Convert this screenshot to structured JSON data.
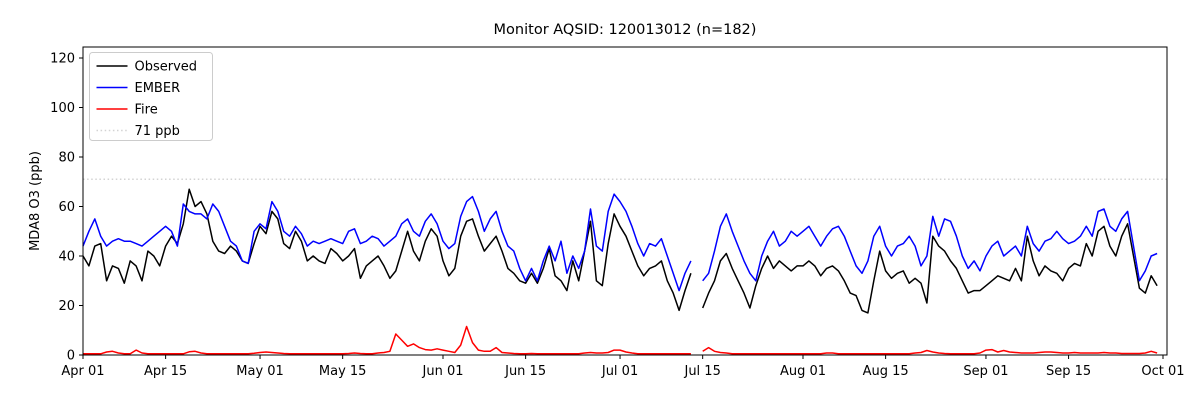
{
  "title": "Monitor AQSID: 120013012 (n=182)",
  "colors": {
    "observed": "#000000",
    "ember": "#0000ff",
    "fire": "#ff0000",
    "threshold": "#d3d3d3",
    "axis": "#000000",
    "legend_border": "#cccccc",
    "background": "#ffffff"
  },
  "chart_data": {
    "type": "line",
    "title": "Monitor AQSID: 120013012 (n=182)",
    "xlabel": "",
    "ylabel": "MDA8 O3 (ppb)",
    "ylim": [
      0,
      124
    ],
    "y_ticks": [
      0,
      20,
      40,
      60,
      80,
      100,
      120
    ],
    "x_tick_labels": [
      "Apr 01",
      "Apr 15",
      "May 01",
      "May 15",
      "Jun 01",
      "Jun 15",
      "Jul 01",
      "Jul 15",
      "Aug 01",
      "Aug 15",
      "Sep 01",
      "Sep 15",
      "Oct 01"
    ],
    "x_tick_days": [
      0,
      14,
      30,
      44,
      61,
      75,
      91,
      105,
      122,
      136,
      153,
      167,
      183
    ],
    "x_start": "Apr 01",
    "x_end": "Sep 30",
    "frequency": "daily",
    "n_points": 182,
    "missing_day": "Jul 14",
    "grid": false,
    "legend_position": "upper left",
    "threshold": {
      "value": 71,
      "label": "71 ppb",
      "dash": "1.5 2.6"
    },
    "series": [
      {
        "name": "Observed",
        "color": "#000000",
        "values": [
          40,
          36,
          44,
          45,
          30,
          36,
          35,
          29,
          38,
          36,
          30,
          42,
          40,
          36,
          44,
          48,
          45,
          53,
          67,
          60,
          62,
          57,
          46,
          42,
          41,
          44,
          42,
          38,
          37,
          45,
          52,
          49,
          58,
          55,
          45,
          43,
          50,
          46,
          38,
          40,
          38,
          37,
          43,
          41,
          38,
          40,
          43,
          31,
          36,
          38,
          40,
          36,
          31,
          34,
          42,
          50,
          42,
          38,
          46,
          51,
          48,
          38,
          32,
          35,
          48,
          54,
          55,
          48,
          42,
          45,
          48,
          42,
          35,
          33,
          30,
          29,
          33,
          29,
          35,
          43,
          32,
          30,
          26,
          38,
          30,
          42,
          54,
          30,
          28,
          45,
          57,
          52,
          48,
          42,
          36,
          32,
          35,
          36,
          38,
          30,
          25,
          18,
          26,
          33,
          null,
          19,
          25,
          30,
          38,
          41,
          35,
          30,
          25,
          19,
          28,
          35,
          40,
          35,
          38,
          36,
          34,
          36,
          36,
          38,
          36,
          32,
          35,
          36,
          34,
          30,
          25,
          24,
          18,
          17,
          30,
          42,
          34,
          31,
          33,
          34,
          29,
          31,
          29,
          21,
          48,
          44,
          42,
          38,
          35,
          30,
          25,
          26,
          26,
          28,
          30,
          32,
          31,
          30,
          35,
          30,
          48,
          38,
          32,
          36,
          34,
          33,
          30,
          35,
          37,
          36,
          45,
          40,
          50,
          52,
          44,
          40,
          48,
          53,
          40,
          27,
          25,
          32,
          28
        ]
      },
      {
        "name": "EMBER",
        "color": "#0000ff",
        "values": [
          44,
          50,
          55,
          48,
          44,
          46,
          47,
          46,
          46,
          45,
          44,
          46,
          48,
          50,
          52,
          50,
          44,
          61,
          58,
          57,
          57,
          55,
          61,
          58,
          52,
          46,
          44,
          38,
          37,
          50,
          53,
          51,
          62,
          58,
          50,
          48,
          52,
          49,
          44,
          46,
          45,
          46,
          47,
          46,
          45,
          50,
          51,
          45,
          46,
          48,
          47,
          44,
          46,
          48,
          53,
          55,
          50,
          48,
          54,
          57,
          53,
          46,
          43,
          45,
          56,
          62,
          64,
          58,
          50,
          55,
          58,
          50,
          44,
          42,
          35,
          30,
          35,
          30,
          38,
          44,
          38,
          46,
          33,
          40,
          35,
          42,
          59,
          44,
          42,
          58,
          65,
          62,
          58,
          52,
          45,
          40,
          45,
          44,
          47,
          40,
          33,
          26,
          33,
          38,
          null,
          30,
          33,
          42,
          52,
          57,
          50,
          44,
          38,
          33,
          30,
          40,
          46,
          50,
          44,
          46,
          50,
          48,
          50,
          52,
          48,
          44,
          48,
          51,
          52,
          48,
          42,
          36,
          33,
          38,
          48,
          52,
          44,
          40,
          44,
          45,
          48,
          44,
          36,
          40,
          56,
          48,
          55,
          54,
          48,
          40,
          35,
          38,
          34,
          40,
          44,
          46,
          40,
          42,
          44,
          40,
          52,
          45,
          42,
          46,
          47,
          50,
          47,
          45,
          46,
          48,
          52,
          48,
          58,
          59,
          52,
          50,
          55,
          58,
          44,
          30,
          34,
          40,
          41
        ]
      },
      {
        "name": "Fire",
        "color": "#ff0000",
        "values": [
          0.5,
          0.5,
          0.5,
          0.5,
          1.2,
          1.5,
          0.8,
          0.5,
          0.5,
          2,
          0.8,
          0.5,
          0.5,
          0.5,
          0.5,
          0.5,
          0.5,
          0.5,
          1.3,
          1.5,
          0.8,
          0.5,
          0.5,
          0.5,
          0.5,
          0.5,
          0.5,
          0.5,
          0.5,
          0.7,
          1,
          1.2,
          1,
          0.8,
          0.6,
          0.5,
          0.5,
          0.5,
          0.5,
          0.5,
          0.5,
          0.5,
          0.5,
          0.5,
          0.5,
          0.6,
          0.8,
          0.6,
          0.5,
          0.5,
          0.8,
          1,
          1.5,
          8.5,
          6,
          3.5,
          4.5,
          3,
          2.2,
          2,
          2.5,
          2,
          1.5,
          1,
          4,
          11.5,
          5,
          2,
          1.5,
          1.5,
          3,
          1,
          0.8,
          0.6,
          0.5,
          0.5,
          0.6,
          0.5,
          0.5,
          0.5,
          0.5,
          0.5,
          0.5,
          0.5,
          0.5,
          0.8,
          1,
          0.8,
          0.8,
          1,
          2,
          2,
          1.2,
          0.8,
          0.5,
          0.5,
          0.5,
          0.5,
          0.5,
          0.5,
          0.5,
          0.5,
          0.5,
          0.5,
          null,
          1.5,
          3,
          1.5,
          1,
          0.8,
          0.5,
          0.5,
          0.5,
          0.5,
          0.5,
          0.5,
          0.5,
          0.5,
          0.5,
          0.5,
          0.5,
          0.5,
          0.5,
          0.5,
          0.5,
          0.5,
          0.8,
          0.8,
          0.5,
          0.5,
          0.5,
          0.5,
          0.5,
          0.5,
          0.5,
          0.5,
          0.5,
          0.5,
          0.5,
          0.5,
          0.5,
          0.8,
          1,
          1.8,
          1.2,
          0.8,
          0.6,
          0.5,
          0.5,
          0.5,
          0.5,
          0.5,
          0.8,
          2,
          2.2,
          1.2,
          1.8,
          1.2,
          1,
          0.8,
          0.8,
          0.8,
          1,
          1.2,
          1.2,
          1,
          0.8,
          0.8,
          1,
          0.8,
          0.8,
          0.8,
          0.8,
          1,
          0.8,
          0.8,
          0.6,
          0.6,
          0.6,
          0.6,
          0.8,
          1.5,
          0.8
        ]
      }
    ]
  }
}
